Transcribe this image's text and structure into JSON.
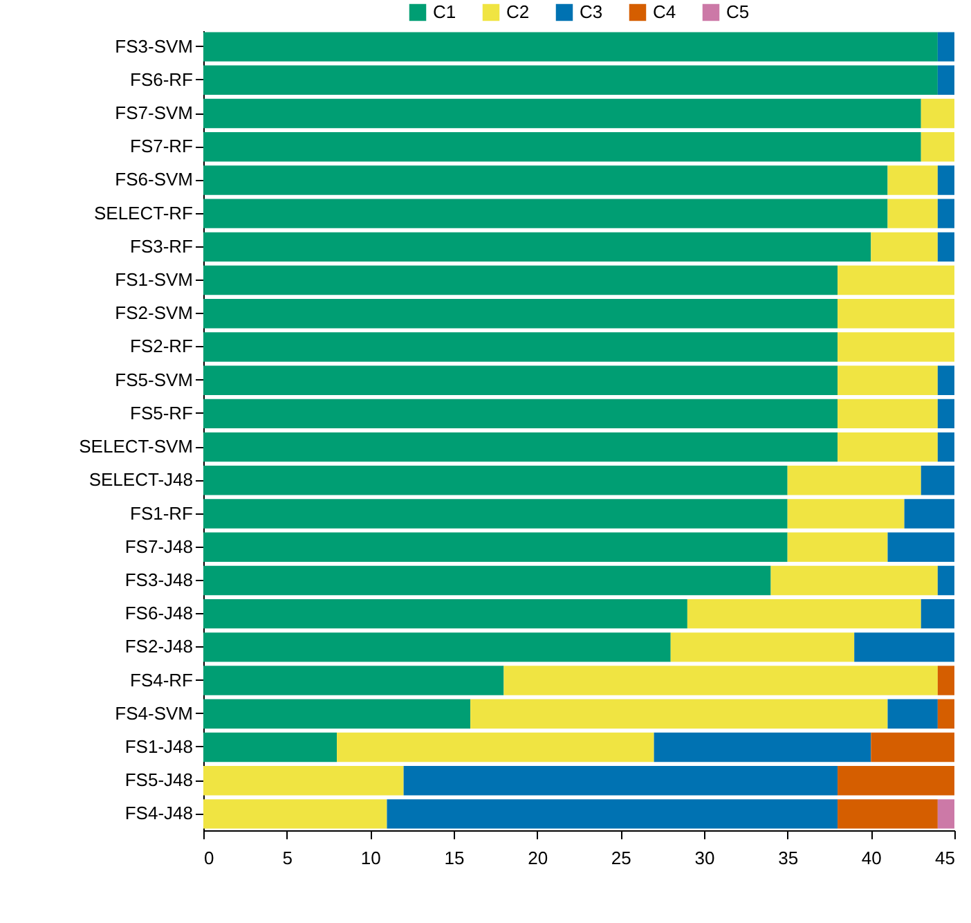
{
  "chart_data": {
    "type": "bar",
    "orientation": "horizontal",
    "stacked": true,
    "legend": "top",
    "grid": false,
    "categories": [
      "FS3-SVM",
      "FS6-RF",
      "FS7-SVM",
      "FS7-RF",
      "FS6-SVM",
      "SELECT-RF",
      "FS3-RF",
      "FS1-SVM",
      "FS2-SVM",
      "FS2-RF",
      "FS5-SVM",
      "FS5-RF",
      "SELECT-SVM",
      "SELECT-J48",
      "FS1-RF",
      "FS7-J48",
      "FS3-J48",
      "FS6-J48",
      "FS2-J48",
      "FS4-RF",
      "FS4-SVM",
      "FS1-J48",
      "FS5-J48",
      "FS4-J48"
    ],
    "series": [
      {
        "name": "C1",
        "color": "#009e73",
        "values": [
          44,
          44,
          43,
          43,
          41,
          41,
          40,
          38,
          38,
          38,
          38,
          38,
          38,
          35,
          35,
          35,
          34,
          29,
          28,
          18,
          16,
          8,
          0,
          0
        ]
      },
      {
        "name": "C2",
        "color": "#f0e442",
        "values": [
          0,
          0,
          2,
          2,
          3,
          3,
          4,
          7,
          7,
          7,
          6,
          6,
          6,
          8,
          7,
          6,
          10,
          14,
          11,
          26,
          25,
          19,
          12,
          11
        ]
      },
      {
        "name": "C3",
        "color": "#0072b2",
        "values": [
          1,
          1,
          0,
          0,
          1,
          1,
          1,
          0,
          0,
          0,
          1,
          1,
          1,
          2,
          3,
          4,
          1,
          2,
          6,
          0,
          3,
          13,
          26,
          27
        ]
      },
      {
        "name": "C4",
        "color": "#d55e00",
        "values": [
          0,
          0,
          0,
          0,
          0,
          0,
          0,
          0,
          0,
          0,
          0,
          0,
          0,
          0,
          0,
          0,
          0,
          0,
          0,
          1,
          1,
          5,
          7,
          6
        ]
      },
      {
        "name": "C5",
        "color": "#cc79a7",
        "values": [
          0,
          0,
          0,
          0,
          0,
          0,
          0,
          0,
          0,
          0,
          0,
          0,
          0,
          0,
          0,
          0,
          0,
          0,
          0,
          0,
          0,
          0,
          0,
          1
        ]
      }
    ],
    "xlim": [
      0,
      45
    ],
    "xticks": [
      0,
      5,
      10,
      15,
      20,
      25,
      30,
      35,
      40,
      45
    ]
  }
}
